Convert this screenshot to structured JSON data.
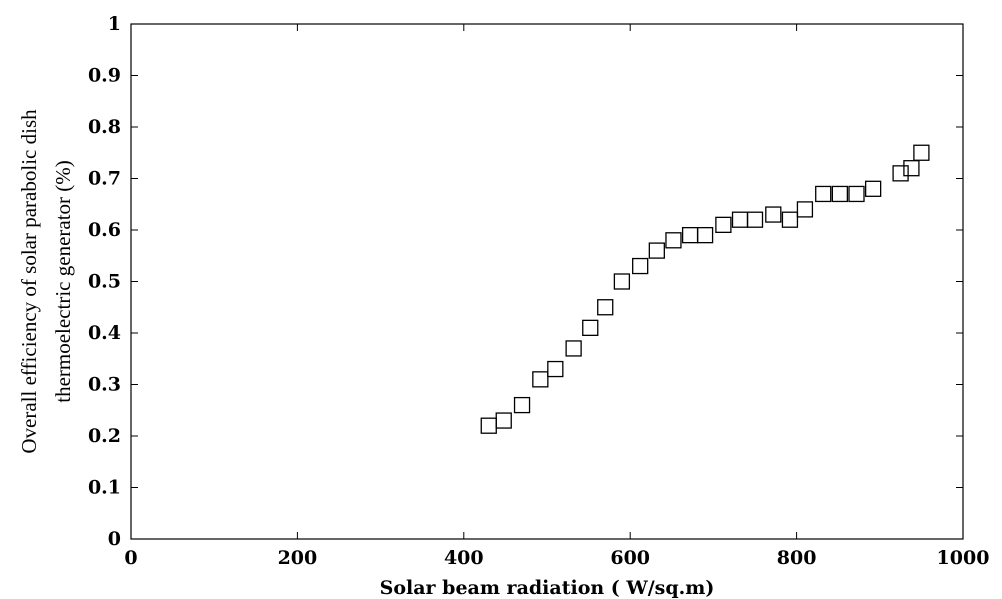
{
  "chart_data": {
    "type": "scatter",
    "title": "",
    "xlabel": "Solar beam radiation ( W/sq.m)",
    "ylabel_lines": [
      "Overall efficiency of solar parabolic dish",
      "thermoelectric generator (%)"
    ],
    "xlim": [
      0,
      1000
    ],
    "ylim": [
      0,
      1
    ],
    "xticks": [
      0,
      200,
      400,
      600,
      800,
      1000
    ],
    "xtick_labels": [
      "0",
      "200",
      "400",
      "600",
      "800",
      "1000"
    ],
    "yticks": [
      0,
      0.1,
      0.2,
      0.3,
      0.4,
      0.5,
      0.6,
      0.7,
      0.8,
      0.9,
      1
    ],
    "ytick_labels": [
      "0",
      "0.1",
      "0.2",
      "0.3",
      "0.4",
      "0.5",
      "0.6",
      "0.7",
      "0.8",
      "0.9",
      "1"
    ],
    "grid": false,
    "marker": "square",
    "series": [
      {
        "x": [
          430,
          448,
          470,
          492,
          510,
          532,
          552,
          570,
          590,
          612,
          632,
          652,
          672,
          690,
          712,
          732,
          750,
          772,
          792,
          810,
          832,
          852,
          872,
          892,
          925,
          938,
          950
        ],
        "y": [
          0.22,
          0.23,
          0.26,
          0.31,
          0.33,
          0.37,
          0.41,
          0.45,
          0.5,
          0.53,
          0.56,
          0.58,
          0.59,
          0.59,
          0.61,
          0.62,
          0.62,
          0.63,
          0.62,
          0.64,
          0.67,
          0.67,
          0.67,
          0.68,
          0.71,
          0.72,
          0.75
        ]
      }
    ]
  }
}
